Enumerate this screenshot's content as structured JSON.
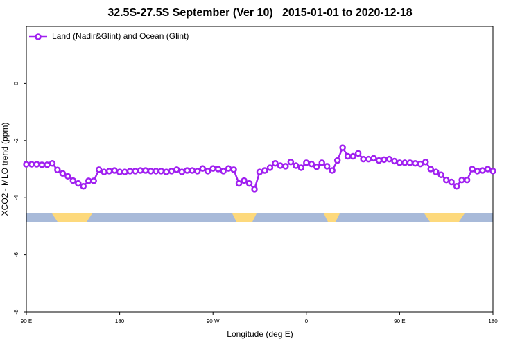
{
  "chart_data": {
    "type": "line",
    "title": "32.5S-27.5S September (Ver 10)   2015-01-01 to 2020-12-18",
    "x_label": "Longitude (deg E)",
    "y_label": "XCO2 - MLO trend (ppm)",
    "x": [
      90,
      95,
      100,
      105,
      110,
      115,
      120,
      125,
      130,
      135,
      140,
      145,
      150,
      155,
      160,
      165,
      170,
      175,
      180,
      185,
      190,
      195,
      200,
      205,
      210,
      215,
      220,
      225,
      230,
      235,
      240,
      245,
      250,
      255,
      260,
      265,
      270,
      275,
      280,
      285,
      290,
      295,
      300,
      305,
      310,
      315,
      320,
      325,
      330,
      335,
      340,
      345,
      350,
      355,
      360,
      365,
      370,
      375,
      380,
      385,
      390,
      395,
      400,
      405,
      410,
      415,
      420,
      425,
      430,
      435,
      440,
      445,
      450,
      455,
      460,
      465,
      470,
      475,
      480,
      485,
      490,
      495,
      500,
      505,
      510,
      515,
      520,
      525,
      530,
      535,
      540
    ],
    "series": [
      {
        "name": "Land (Nadir&Glint) and Ocean (Glint)",
        "color": "#a020f0",
        "values": [
          -2.83,
          -2.83,
          -2.83,
          -2.85,
          -2.85,
          -2.8,
          -3.03,
          -3.15,
          -3.25,
          -3.4,
          -3.5,
          -3.6,
          -3.41,
          -3.41,
          -3.02,
          -3.1,
          -3.07,
          -3.05,
          -3.1,
          -3.1,
          -3.07,
          -3.07,
          -3.05,
          -3.05,
          -3.07,
          -3.07,
          -3.07,
          -3.1,
          -3.07,
          -3.02,
          -3.1,
          -3.05,
          -3.05,
          -3.07,
          -2.98,
          -3.07,
          -2.98,
          -3.0,
          -3.07,
          -2.98,
          -3.02,
          -3.5,
          -3.4,
          -3.5,
          -3.7,
          -3.1,
          -3.05,
          -2.95,
          -2.8,
          -2.88,
          -2.9,
          -2.75,
          -2.88,
          -2.95,
          -2.78,
          -2.82,
          -2.92,
          -2.78,
          -2.9,
          -3.05,
          -2.7,
          -2.25,
          -2.55,
          -2.55,
          -2.45,
          -2.65,
          -2.65,
          -2.62,
          -2.7,
          -2.67,
          -2.65,
          -2.72,
          -2.78,
          -2.78,
          -2.78,
          -2.8,
          -2.82,
          -2.75,
          -3.0,
          -3.1,
          -3.2,
          -3.38,
          -3.45,
          -3.6,
          -3.38,
          -3.38,
          -3.0,
          -3.07,
          -3.05,
          -3.0,
          -3.07
        ]
      }
    ],
    "xlim": [
      90,
      540
    ],
    "xticks": [
      {
        "value": 90,
        "label": "90 E"
      },
      180,
      {
        "value": 270,
        "label": "90 W"
      },
      {
        "value": 360,
        "label": "0"
      },
      {
        "value": 450,
        "label": "90 E"
      },
      {
        "value": 540,
        "label": "180"
      }
    ],
    "ylim": [
      -8,
      2
    ],
    "yticks": [
      0,
      -2,
      -4,
      -6,
      -8
    ],
    "legend": "top-left"
  }
}
